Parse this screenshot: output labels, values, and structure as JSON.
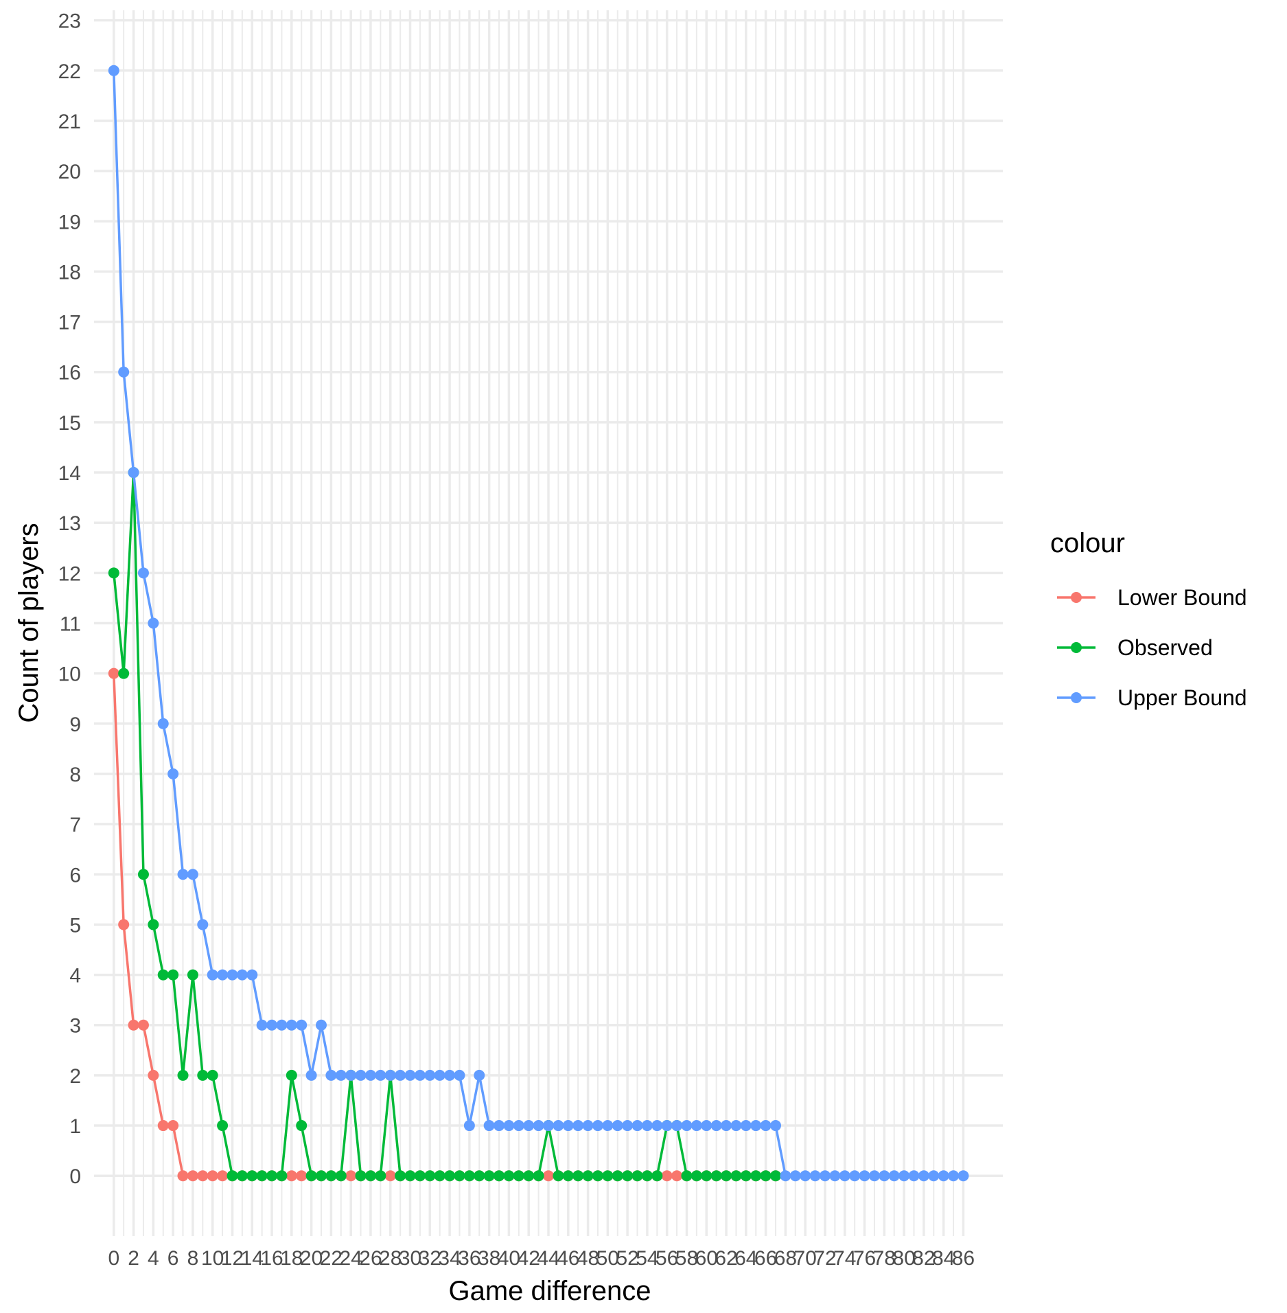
{
  "chart_data": {
    "type": "line",
    "xlabel": "Game difference",
    "ylabel": "Count of players",
    "xlim": [
      -2,
      90
    ],
    "ylim": [
      -1.2,
      23.2
    ],
    "grid": true,
    "x_ticks": [
      0,
      2,
      4,
      6,
      8,
      10,
      12,
      14,
      16,
      18,
      20,
      22,
      24,
      26,
      28,
      30,
      32,
      34,
      36,
      38,
      40,
      42,
      44,
      46,
      48,
      50,
      52,
      54,
      56,
      58,
      60,
      62,
      64,
      66,
      68,
      70,
      72,
      74,
      76,
      78,
      80,
      82,
      84,
      86
    ],
    "y_ticks": [
      0,
      1,
      2,
      3,
      4,
      5,
      6,
      7,
      8,
      9,
      10,
      11,
      12,
      13,
      14,
      15,
      16,
      17,
      18,
      19,
      20,
      21,
      22,
      23
    ],
    "legend": {
      "title": "colour",
      "position": "right"
    },
    "series": [
      {
        "name": "Lower Bound",
        "color": "#F8766D",
        "x": [
          0,
          1,
          2,
          3,
          4,
          5,
          6,
          7,
          8,
          9,
          10,
          11,
          12,
          13,
          14,
          15,
          16,
          17,
          18,
          19,
          20,
          21,
          22,
          23,
          24,
          25,
          26,
          27,
          28,
          29,
          30,
          31,
          32,
          33,
          34,
          35,
          36,
          37,
          38,
          39,
          40,
          41,
          42,
          43,
          44,
          45,
          46,
          47,
          48,
          49,
          50,
          51,
          52,
          53,
          54,
          55,
          56,
          57,
          58,
          59,
          60,
          61,
          62,
          63,
          64,
          65,
          66,
          67
        ],
        "y": [
          10,
          5,
          3,
          3,
          2,
          1,
          1,
          0,
          0,
          0,
          0,
          0,
          0,
          0,
          0,
          0,
          0,
          0,
          0,
          0,
          0,
          0,
          0,
          0,
          0,
          0,
          0,
          0,
          0,
          0,
          0,
          0,
          0,
          0,
          0,
          0,
          0,
          0,
          0,
          0,
          0,
          0,
          0,
          0,
          0,
          0,
          0,
          0,
          0,
          0,
          0,
          0,
          0,
          0,
          0,
          0,
          0,
          0,
          0,
          0,
          0,
          0,
          0,
          0,
          0,
          0,
          0,
          0
        ]
      },
      {
        "name": "Observed",
        "color": "#00BA38",
        "x": [
          0,
          1,
          2,
          3,
          4,
          5,
          6,
          7,
          8,
          9,
          10,
          11,
          12,
          13,
          14,
          15,
          16,
          17,
          18,
          19,
          20,
          21,
          22,
          23,
          24,
          25,
          26,
          27,
          28,
          29,
          30,
          31,
          32,
          33,
          34,
          35,
          36,
          37,
          38,
          39,
          40,
          41,
          42,
          43,
          44,
          45,
          46,
          47,
          48,
          49,
          50,
          51,
          52,
          53,
          54,
          55,
          56,
          57,
          58,
          59,
          60,
          61,
          62,
          63,
          64,
          65,
          66,
          67
        ],
        "y": [
          12,
          10,
          14,
          6,
          5,
          4,
          4,
          2,
          4,
          2,
          2,
          1,
          0,
          0,
          0,
          0,
          0,
          0,
          2,
          1,
          0,
          0,
          0,
          0,
          2,
          0,
          0,
          0,
          2,
          0,
          0,
          0,
          0,
          0,
          0,
          0,
          0,
          0,
          0,
          0,
          0,
          0,
          0,
          0,
          1,
          0,
          0,
          0,
          0,
          0,
          0,
          0,
          0,
          0,
          0,
          0,
          1,
          1,
          0,
          0,
          0,
          0,
          0,
          0,
          0,
          0,
          0,
          0
        ]
      },
      {
        "name": "Upper Bound",
        "color": "#619CFF",
        "x": [
          0,
          1,
          2,
          3,
          4,
          5,
          6,
          7,
          8,
          9,
          10,
          11,
          12,
          13,
          14,
          15,
          16,
          17,
          18,
          19,
          20,
          21,
          22,
          23,
          24,
          25,
          26,
          27,
          28,
          29,
          30,
          31,
          32,
          33,
          34,
          35,
          36,
          37,
          38,
          39,
          40,
          41,
          42,
          43,
          44,
          45,
          46,
          47,
          48,
          49,
          50,
          51,
          52,
          53,
          54,
          55,
          56,
          57,
          58,
          59,
          60,
          61,
          62,
          63,
          64,
          65,
          66,
          67,
          68,
          69,
          70,
          71,
          72,
          73,
          74,
          75,
          76,
          77,
          78,
          79,
          80,
          81,
          82,
          83,
          84,
          85,
          86
        ],
        "y": [
          22,
          16,
          14,
          12,
          11,
          9,
          8,
          6,
          6,
          5,
          4,
          4,
          4,
          4,
          4,
          3,
          3,
          3,
          3,
          3,
          2,
          3,
          2,
          2,
          2,
          2,
          2,
          2,
          2,
          2,
          2,
          2,
          2,
          2,
          2,
          2,
          1,
          2,
          1,
          1,
          1,
          1,
          1,
          1,
          1,
          1,
          1,
          1,
          1,
          1,
          1,
          1,
          1,
          1,
          1,
          1,
          1,
          1,
          1,
          1,
          1,
          1,
          1,
          1,
          1,
          1,
          1,
          1,
          0,
          0,
          0,
          0,
          0,
          0,
          0,
          0,
          0,
          0,
          0,
          0,
          0,
          0,
          0,
          0,
          0,
          0,
          0
        ]
      }
    ]
  }
}
